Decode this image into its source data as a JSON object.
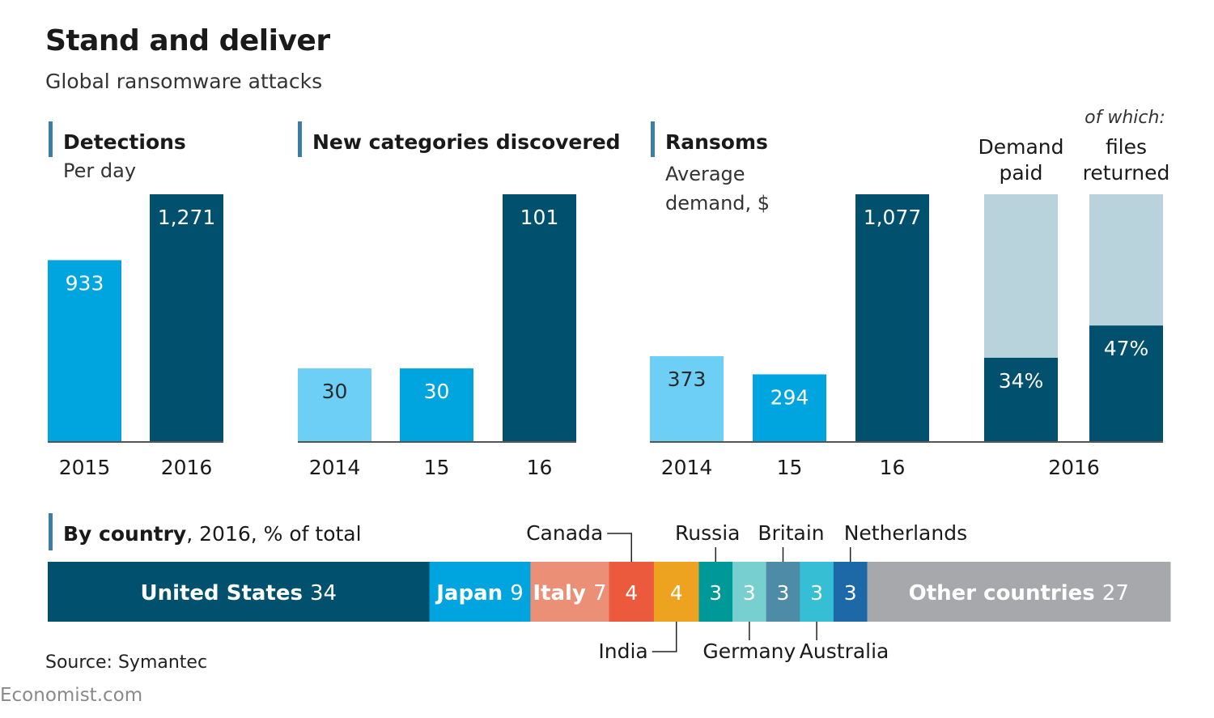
{
  "header": {
    "title": "Stand and deliver",
    "subtitle": "Global ransomware attacks"
  },
  "footer": {
    "source": "Source: Symantec",
    "brand": "Economist.com"
  },
  "colors": {
    "light_blue": "#6dcff6",
    "mid_blue": "#00a5e0",
    "dark_blue": "#00506e",
    "pale_blue": "#b9d3dd",
    "baseline": "#555555",
    "label_marker": "#3d7ea6"
  },
  "chart_data": [
    {
      "type": "bar",
      "panel": "detections",
      "title": "Detections",
      "subtitle": "Per day",
      "categories": [
        "2015",
        "2016"
      ],
      "values": [
        933,
        1271
      ],
      "value_labels": [
        "933",
        "1,271"
      ],
      "bar_colors": [
        "#00a5e0",
        "#00506e"
      ]
    },
    {
      "type": "bar",
      "panel": "new-categories",
      "title": "New categories discovered",
      "categories": [
        "2014",
        "15",
        "16"
      ],
      "values": [
        30,
        30,
        101
      ],
      "value_labels": [
        "30",
        "30",
        "101"
      ],
      "bar_colors": [
        "#6dcff6",
        "#00a5e0",
        "#00506e"
      ]
    },
    {
      "type": "bar",
      "panel": "ransoms",
      "title": "Ransoms",
      "subtitle": [
        "Average",
        "demand, $"
      ],
      "categories": [
        "2014",
        "15",
        "16"
      ],
      "values": [
        373,
        294,
        1077
      ],
      "value_labels": [
        "373",
        "294",
        "1,077"
      ],
      "bar_colors": [
        "#6dcff6",
        "#00a5e0",
        "#00506e"
      ]
    },
    {
      "type": "bar",
      "panel": "payment",
      "subtitle": "of which:",
      "category": "2016",
      "series": [
        {
          "name": [
            "Demand",
            "paid"
          ],
          "value": 34,
          "label": "34%"
        },
        {
          "name": [
            "files",
            "returned"
          ],
          "value": 47,
          "label": "47%"
        }
      ],
      "scale_max": 100,
      "fill_color": "#00506e",
      "background_color": "#b9d3dd"
    },
    {
      "type": "bar",
      "panel": "by-country",
      "title": "By country",
      "subtitle": ", 2016, % of total",
      "segments": [
        {
          "name": "United States",
          "value": 34,
          "color": "#00506e",
          "label_name": "United States",
          "label_value": "34"
        },
        {
          "name": "Japan",
          "value": 9,
          "color": "#00a5e0",
          "label_name": "Japan",
          "label_value": "9"
        },
        {
          "name": "Italy",
          "value": 7,
          "color": "#eb8f76",
          "label_name": "Italy",
          "label_value": "7"
        },
        {
          "name": "Canada",
          "value": 4,
          "color": "#ec5a3e",
          "label_name": "",
          "label_value": "4"
        },
        {
          "name": "India",
          "value": 4,
          "color": "#eea320",
          "label_name": "",
          "label_value": "4"
        },
        {
          "name": "Russia",
          "value": 3,
          "color": "#009999",
          "label_name": "",
          "label_value": "3"
        },
        {
          "name": "Germany",
          "value": 3,
          "color": "#77cfd0",
          "label_name": "",
          "label_value": "3"
        },
        {
          "name": "Britain",
          "value": 3,
          "color": "#4e8ba6",
          "label_name": "",
          "label_value": "3"
        },
        {
          "name": "Australia",
          "value": 3,
          "color": "#36bfd4",
          "label_name": "",
          "label_value": "3"
        },
        {
          "name": "Netherlands",
          "value": 3,
          "color": "#1d69a8",
          "label_name": "",
          "label_value": "3"
        },
        {
          "name": "Other countries",
          "value": 27,
          "color": "#a6a8ab",
          "label_name": "Other countries",
          "label_value": "27"
        }
      ],
      "callouts_above": [
        "Canada",
        "Russia",
        "Britain",
        "Netherlands"
      ],
      "callouts_below": [
        "India",
        "Germany",
        "Australia"
      ]
    }
  ]
}
